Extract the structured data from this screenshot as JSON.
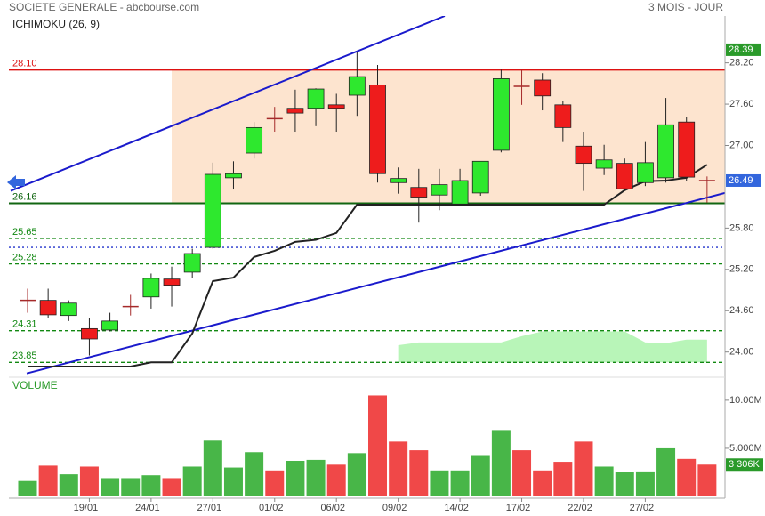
{
  "chart_data": {
    "type": "candlestick",
    "title": "SOCIETE GENERALE - abcbourse.com",
    "subtitle": "3 MOIS - JOUR",
    "indicator_label": "ICHIMOKU (26, 9)",
    "categories": [
      null,
      null,
      null,
      "19/01",
      null,
      null,
      "24/01",
      null,
      null,
      "27/01",
      null,
      null,
      "01/02",
      null,
      null,
      "06/02",
      null,
      null,
      "09/02",
      null,
      null,
      "14/02",
      null,
      null,
      "17/02",
      null,
      null,
      "22/02",
      null,
      null,
      "27/02",
      null,
      null,
      null
    ],
    "open": [
      24.75,
      24.75,
      24.53,
      24.34,
      24.32,
      24.66,
      24.8,
      25.06,
      25.16,
      25.52,
      26.53,
      26.89,
      27.39,
      27.54,
      27.54,
      27.59,
      27.73,
      27.88,
      26.46,
      26.39,
      26.28,
      26.15,
      26.31,
      26.93,
      27.86,
      27.95,
      27.59,
      26.99,
      26.67,
      26.74,
      26.46,
      26.53,
      27.34,
      26.49
    ],
    "high": [
      24.92,
      24.92,
      24.75,
      24.5,
      24.57,
      24.83,
      25.14,
      25.24,
      25.5,
      26.75,
      26.77,
      27.34,
      27.56,
      27.81,
      27.83,
      27.75,
      28.36,
      28.17,
      26.68,
      26.66,
      26.66,
      26.66,
      26.77,
      28.1,
      28.1,
      28.05,
      27.65,
      27.2,
      27.01,
      26.81,
      27.05,
      27.69,
      27.41,
      26.55
    ],
    "low": [
      24.57,
      24.5,
      24.45,
      23.95,
      24.3,
      24.53,
      24.63,
      24.66,
      25.08,
      25.5,
      26.36,
      26.81,
      27.2,
      27.2,
      27.28,
      27.2,
      27.43,
      26.46,
      26.3,
      25.88,
      26.06,
      26.12,
      26.27,
      26.9,
      27.59,
      27.51,
      27.05,
      26.34,
      26.57,
      26.34,
      26.41,
      26.46,
      26.49,
      26.17
    ],
    "close": [
      24.75,
      24.54,
      24.71,
      24.19,
      24.45,
      24.66,
      25.07,
      24.97,
      25.43,
      26.58,
      26.59,
      27.26,
      27.39,
      27.47,
      27.82,
      27.54,
      28.0,
      26.59,
      26.52,
      26.25,
      26.43,
      26.49,
      26.77,
      27.97,
      27.86,
      27.72,
      27.26,
      26.74,
      26.79,
      26.37,
      26.75,
      27.3,
      26.54,
      26.49
    ],
    "up_color": "#2ee82e",
    "down_color": "#ee1c1c",
    "doji_color": "#a52a2a",
    "xlim": [
      -0.907,
      33.87
    ],
    "ylim": [
      23.66,
      28.88
    ],
    "yticks": [
      {
        "value": 24.0,
        "label": "24.00"
      },
      {
        "value": 24.6,
        "label": "24.60"
      },
      {
        "value": 25.2,
        "label": "25.20"
      },
      {
        "value": 25.8,
        "label": "25.80"
      },
      {
        "value": 27.0,
        "label": "27.00"
      },
      {
        "value": 27.6,
        "label": "27.60"
      },
      {
        "value": 28.2,
        "label": "28.20"
      }
    ],
    "levels": [
      {
        "value": 28.1,
        "label": "28.10",
        "color": "#dd1111",
        "style": "solid"
      },
      {
        "value": 26.16,
        "label": "26.16",
        "color": "#116611",
        "style": "solid"
      },
      {
        "value": 25.65,
        "label": "25.65",
        "color": "#118811",
        "style": "dashed"
      },
      {
        "value": 25.52,
        "color": "#2233cc",
        "style": "dotted"
      },
      {
        "value": 25.28,
        "label": "25.28",
        "color": "#118811",
        "style": "dashed"
      },
      {
        "value": 24.31,
        "label": "24.31",
        "color": "#118811",
        "style": "dashed"
      },
      {
        "value": 23.85,
        "label": "23.85",
        "color": "#118811",
        "style": "dashed"
      }
    ],
    "range_box": {
      "x": [
        7,
        33.87
      ],
      "y": [
        26.16,
        28.1
      ],
      "color": "#fde4cf"
    },
    "trendlines": [
      {
        "color": "#1a1acc",
        "x": [
          -0.82,
          20.26
        ],
        "y": [
          26.34,
          28.88
        ]
      },
      {
        "color": "#1a1acc",
        "x": [
          -0.04,
          33.87
        ],
        "y": [
          23.69,
          26.31
        ]
      }
    ],
    "ichimoku": {
      "color": "#222222",
      "values": [
        23.79,
        23.79,
        23.79,
        23.79,
        23.79,
        23.79,
        23.85,
        23.85,
        24.27,
        25.03,
        25.08,
        25.38,
        25.47,
        25.6,
        25.63,
        25.73,
        26.14,
        26.14,
        26.14,
        26.14,
        26.14,
        26.14,
        26.14,
        26.14,
        26.14,
        26.14,
        26.14,
        26.14,
        26.14,
        26.35,
        26.48,
        26.49,
        26.53,
        26.72
      ]
    },
    "cloud": {
      "color": "#b8f5b8",
      "upper": [
        null,
        null,
        null,
        null,
        null,
        null,
        null,
        null,
        null,
        null,
        null,
        null,
        null,
        null,
        null,
        null,
        null,
        null,
        24.1,
        24.14,
        24.14,
        24.14,
        24.14,
        24.14,
        24.23,
        24.3,
        24.3,
        24.3,
        24.3,
        24.3,
        24.14,
        24.13,
        24.18,
        24.18
      ],
      "lower": [
        null,
        null,
        null,
        null,
        null,
        null,
        null,
        null,
        null,
        null,
        null,
        null,
        null,
        null,
        null,
        null,
        null,
        null,
        23.85,
        23.85,
        23.85,
        23.85,
        23.85,
        23.85,
        23.85,
        23.85,
        23.85,
        23.85,
        23.85,
        23.85,
        23.85,
        23.85,
        23.85,
        23.85
      ]
    },
    "markers": [
      {
        "value": 28.39,
        "label": "28.39",
        "color": "#2a9a2a"
      },
      {
        "value": 26.49,
        "label": "26.49",
        "color": "#3366dd"
      }
    ],
    "volume": {
      "title": "VOLUME",
      "values": [
        1.6,
        3.2,
        2.3,
        3.1,
        1.9,
        1.9,
        2.2,
        1.9,
        3.1,
        5.8,
        3.0,
        4.6,
        2.7,
        3.7,
        3.8,
        3.3,
        4.5,
        10.5,
        5.7,
        4.8,
        2.7,
        2.7,
        4.3,
        6.9,
        4.8,
        2.7,
        3.6,
        5.7,
        3.1,
        2.5,
        2.6,
        5.0,
        3.9,
        3.306
      ],
      "colors": [
        "#48b648",
        "#f04848",
        "#48b648",
        "#f04848",
        "#48b648",
        "#48b648",
        "#48b648",
        "#f04848",
        "#48b648",
        "#48b648",
        "#48b648",
        "#48b648",
        "#f04848",
        "#48b648",
        "#48b648",
        "#f04848",
        "#48b648",
        "#f04848",
        "#f04848",
        "#f04848",
        "#48b648",
        "#48b648",
        "#48b648",
        "#48b648",
        "#f04848",
        "#f04848",
        "#f04848",
        "#f04848",
        "#48b648",
        "#48b648",
        "#48b648",
        "#48b648",
        "#f04848",
        "#f04848"
      ],
      "ylim": [
        0,
        12.3
      ],
      "yticks": [
        {
          "value": 5,
          "label": "5.000M"
        },
        {
          "value": 10,
          "label": "10.00M"
        }
      ],
      "current": {
        "value": 3.306,
        "label": "3 306K",
        "color": "#2a9a2a"
      }
    }
  }
}
